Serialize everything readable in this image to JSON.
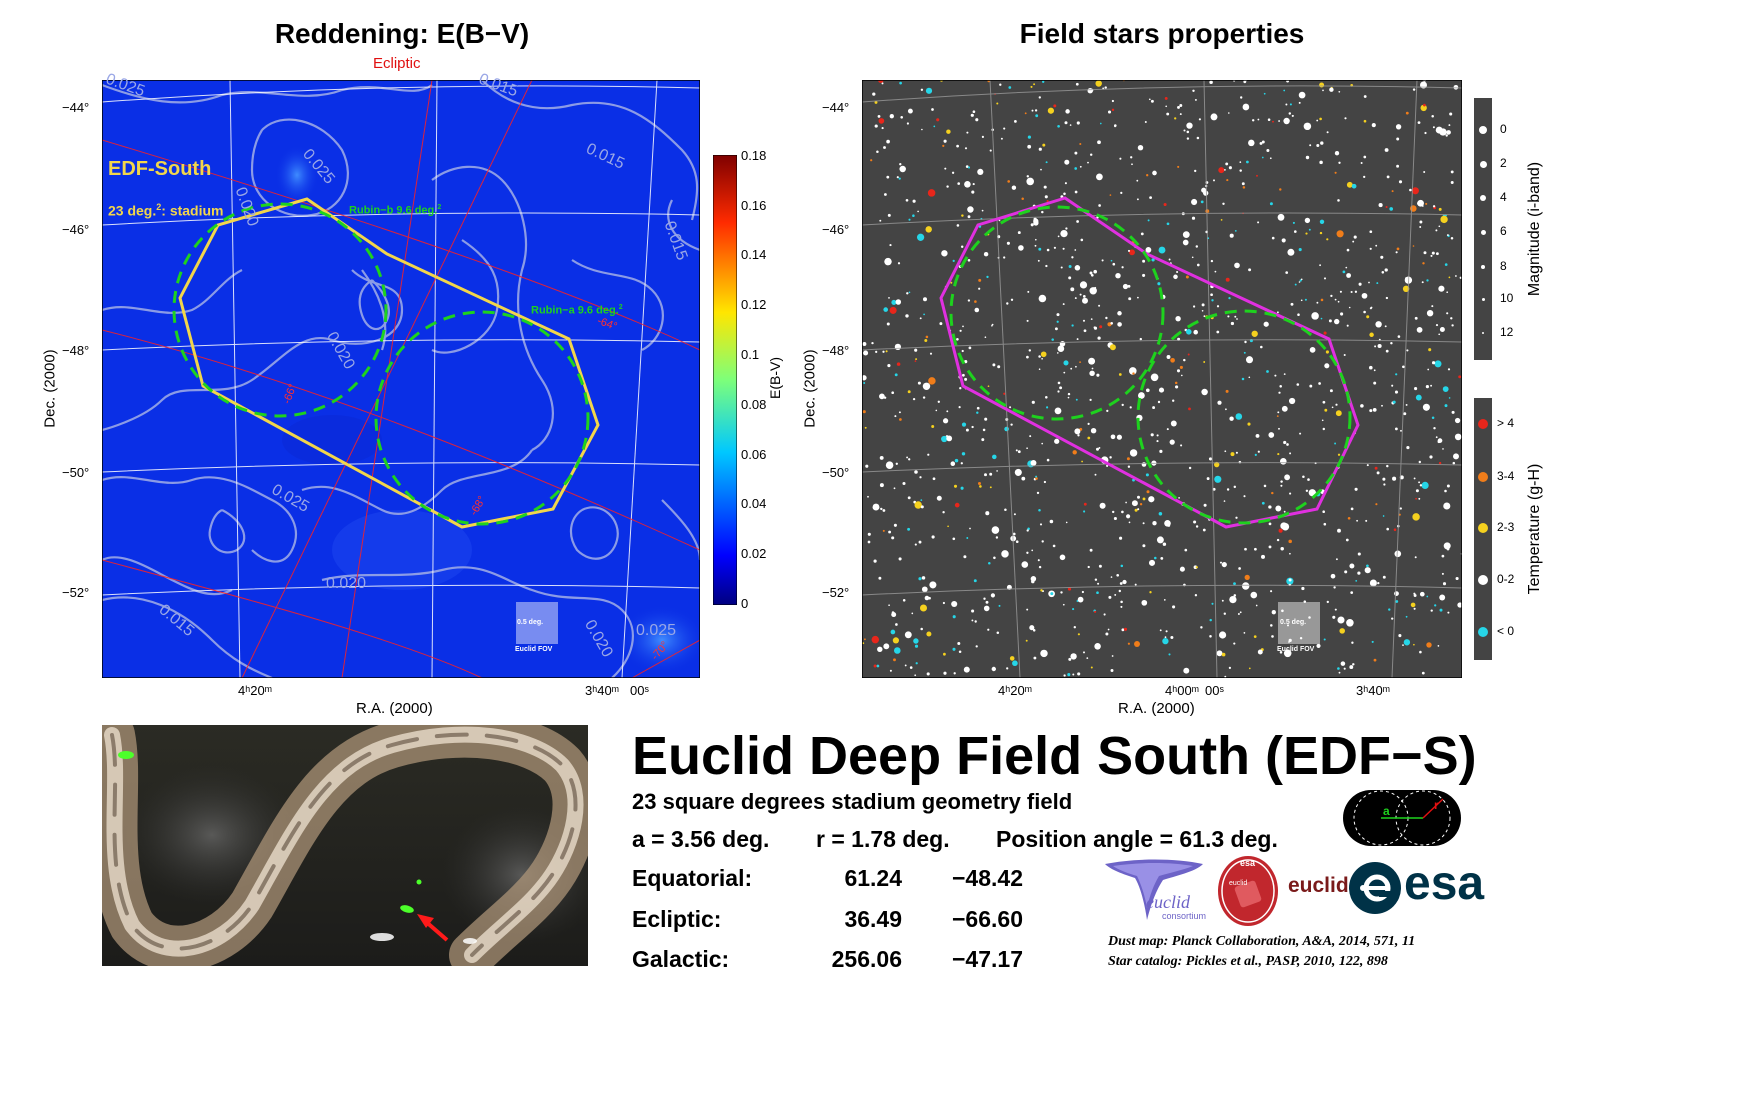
{
  "left_panel": {
    "title": "Reddening: E(B−V)",
    "ecliptic_label": "Ecliptic",
    "field_name": "EDF-South",
    "area_label": "23 deg.",
    "area_sup": "2",
    "area_suffix": ": stadium",
    "rubin_b_label": "Rubin−b 9.6 deg.",
    "rubin_a_label": "Rubin−a 9.6 deg.",
    "label_sup": "2",
    "fov_label": "0.5 deg.",
    "fov_caption": "Euclid FOV",
    "contour_labels": [
      "0.025",
      "0.015",
      "0.015",
      "0.020",
      "0.020",
      "0.025",
      "0.015",
      "0.025",
      "0.020",
      "0.025",
      "0.015",
      "0.020"
    ],
    "grid_labels": [
      "-64°",
      "-66°",
      "-68°",
      "-70°"
    ],
    "dec_ticks": [
      "−44°",
      "−46°",
      "−48°",
      "−50°",
      "−52°"
    ],
    "ra_ticks": [
      "4ʰ20ᵐ",
      "3ʰ40ᵐ",
      "00ˢ"
    ],
    "xlabel": "R.A. (2000)",
    "ylabel": "Dec. (2000)",
    "colorbar_label": "E(B-V)",
    "colorbar_ticks": [
      "0.18",
      "0.16",
      "0.14",
      "0.12",
      "0.1",
      "0.08",
      "0.06",
      "0.04",
      "0.02",
      "0"
    ]
  },
  "right_panel": {
    "title": "Field stars properties",
    "dec_ticks": [
      "−44°",
      "−46°",
      "−48°",
      "−50°",
      "−52°"
    ],
    "ra_ticks": [
      "4ʰ20ᵐ",
      "4ʰ00ᵐ",
      "00ˢ",
      "3ʰ40ᵐ"
    ],
    "xlabel": "R.A. (2000)",
    "ylabel": "Dec. (2000)",
    "fov_label": "0.5 deg.",
    "fov_caption": "Euclid FOV",
    "magnitude_label": "Magnitude (i-band)",
    "magnitude_ticks": [
      "0",
      "2",
      "4",
      "6",
      "8",
      "10",
      "12"
    ],
    "temperature_label": "Temperature (g-H)",
    "temperature_ticks": [
      "> 4",
      "3-4",
      "2-3",
      "0-2",
      "< 0"
    ],
    "temperature_colors": [
      "#e8261b",
      "#f07d1a",
      "#f5d11f",
      "#ffffff",
      "#26d6e8"
    ]
  },
  "info": {
    "title": "Euclid Deep Field South (EDF−S)",
    "subtitle": "23 square degrees stadium geometry field",
    "a": "a = 3.56 deg.",
    "r": "r = 1.78 deg.",
    "position_angle": "Position angle = 61.3 deg.",
    "coords": [
      {
        "name": "Equatorial:",
        "lon": "61.24",
        "lat": "−48.42"
      },
      {
        "name": "Ecliptic:",
        "lon": "36.49",
        "lat": "−66.60"
      },
      {
        "name": "Galactic:",
        "lon": "256.06",
        "lat": "−47.17"
      }
    ],
    "stadium_a": "a",
    "stadium_r": "r",
    "citations": [
      "Dust map: Planck Collaboration, A&A, 2014, 571, 11",
      "Star catalog: Pickles et al., PASP, 2010, 122, 898"
    ]
  },
  "logos": {
    "euclid_consortium": "euclid",
    "euclid_consortium_sub": "consortium",
    "mission_badge_top": "esa",
    "mission_badge_bottom": "euclid",
    "euclid_word": "euclid",
    "esa_word": "esa"
  },
  "colors": {
    "stadium_left": "#f2d64b",
    "stadium_right": "#e030e0",
    "rubin": "#1ed21e",
    "map_blue": "#0a2fe6",
    "star_bg": "#444444"
  }
}
